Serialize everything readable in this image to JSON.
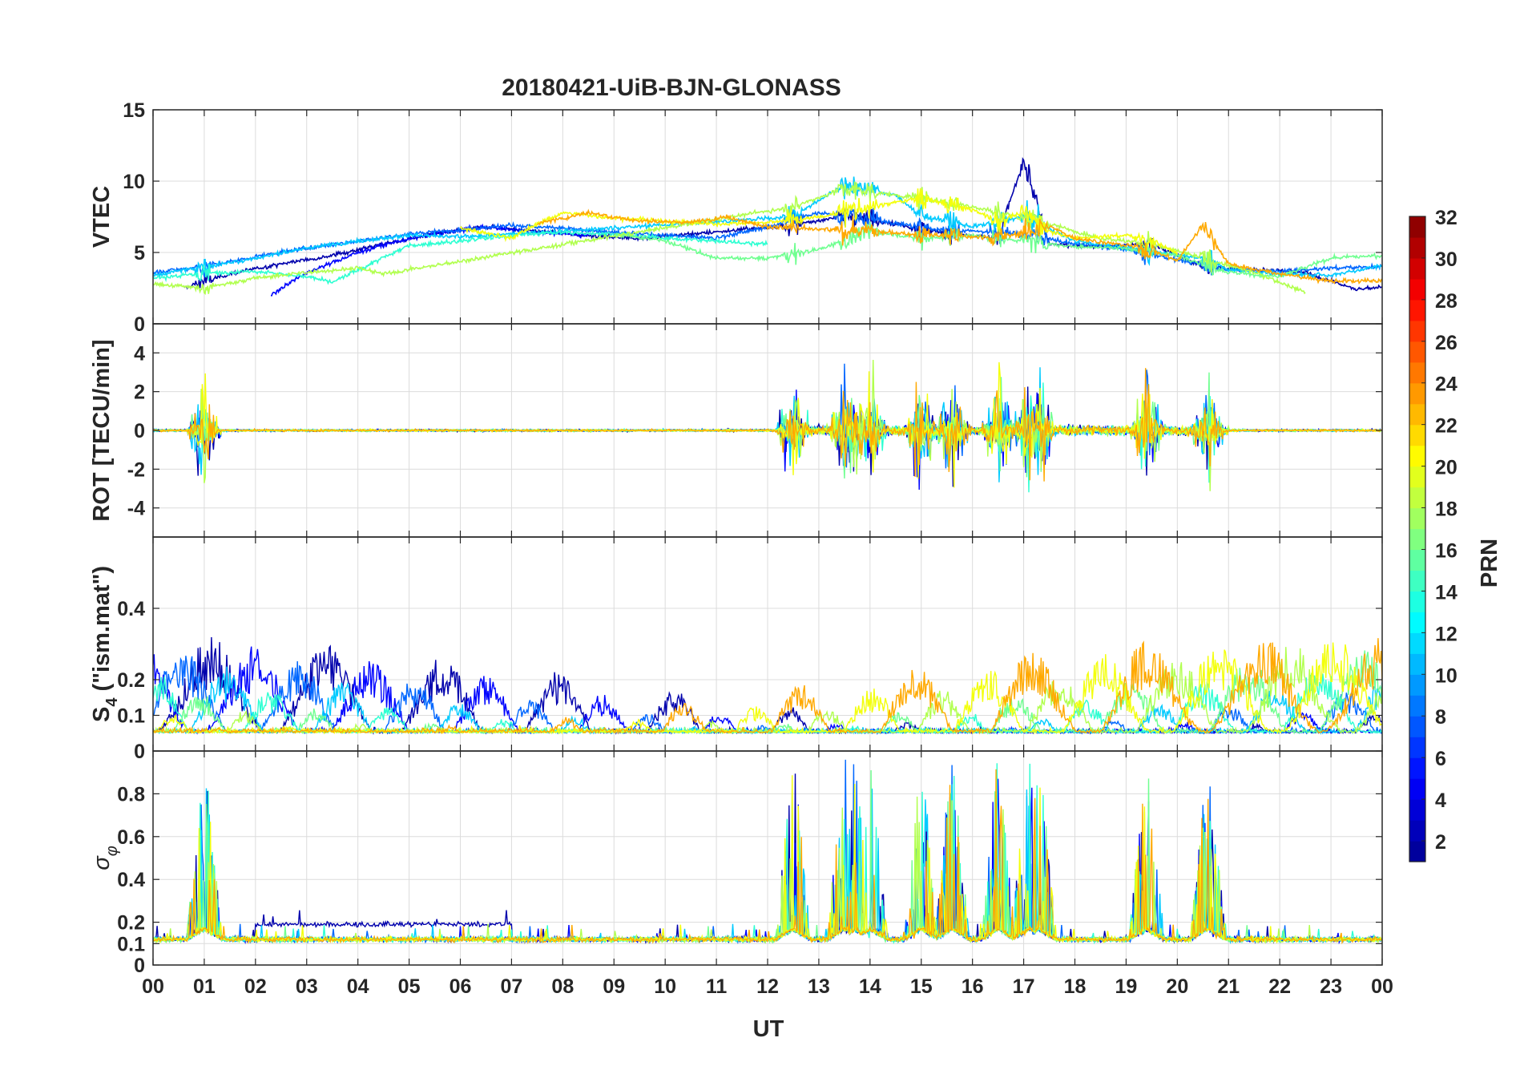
{
  "chart_data": {
    "type": "line",
    "title": "20180421-UiB-BJN-GLONASS",
    "xlabel": "UT",
    "x_ticks": [
      "00",
      "01",
      "02",
      "03",
      "04",
      "05",
      "06",
      "07",
      "08",
      "09",
      "10",
      "11",
      "12",
      "13",
      "14",
      "15",
      "16",
      "17",
      "18",
      "19",
      "20",
      "21",
      "22",
      "23",
      "00"
    ],
    "xlim": [
      0,
      24
    ],
    "grid": true,
    "colorbar": {
      "label": "PRN",
      "range": [
        1,
        32
      ],
      "ticks": [
        "2",
        "4",
        "6",
        "8",
        "10",
        "12",
        "14",
        "16",
        "18",
        "20",
        "22",
        "24",
        "26",
        "28",
        "30",
        "32"
      ],
      "colormap": "jet",
      "colors": [
        "#00008f",
        "#0000ff",
        "#0080ff",
        "#00ffff",
        "#80ff80",
        "#ffff00",
        "#ff8000",
        "#ff0000",
        "#800000"
      ]
    },
    "panels": [
      {
        "name": "vtec",
        "ylabel": "VTEC",
        "ylim": [
          0,
          15
        ],
        "y_ticks": [
          "0",
          "5",
          "10",
          "15"
        ],
        "series": [
          {
            "prn": 2,
            "x": [
              0.6,
              1.5,
              2.5,
              3.5,
              4.5,
              5.5,
              6.5,
              7.5,
              8.5,
              9.5,
              10.5,
              11.5,
              12.5,
              13.5,
              14.5,
              15.5,
              16.5,
              17.0,
              17.5,
              18.5,
              19.5,
              20.5,
              21.5,
              22.5,
              23.5,
              24.0
            ],
            "y": [
              2.5,
              3.5,
              4.2,
              4.8,
              5.6,
              6.3,
              6.8,
              6.5,
              6.2,
              6.0,
              6.3,
              6.6,
              6.9,
              7.6,
              7.0,
              6.3,
              6.0,
              11.5,
              5.6,
              5.4,
              5.6,
              4.0,
              3.8,
              3.6,
              2.4,
              2.6
            ]
          },
          {
            "prn": 5,
            "x": [
              2.3,
              2.8,
              3.3,
              4.0,
              4.8,
              5.5,
              6.5,
              7.5,
              8.5
            ],
            "y": [
              2.0,
              3.2,
              4.0,
              5.0,
              5.8,
              6.3,
              6.8,
              6.4,
              6.2
            ]
          },
          {
            "prn": 8,
            "x": [
              0.0,
              1.0,
              2.0,
              3.0,
              4.0,
              5.0,
              6.0,
              7.0,
              8.0,
              9.0,
              10.0,
              11.0,
              12.0,
              13.0,
              14.0,
              15.0,
              16.0,
              17.0,
              18.0,
              19.0,
              20.0,
              21.0,
              22.0,
              23.0,
              24.0
            ],
            "y": [
              3.6,
              4.0,
              4.7,
              5.3,
              5.8,
              6.3,
              6.6,
              6.9,
              6.7,
              6.4,
              6.2,
              6.0,
              6.8,
              7.8,
              7.4,
              6.7,
              6.5,
              6.3,
              5.6,
              5.2,
              4.5,
              3.8,
              3.7,
              3.9,
              4.0
            ]
          },
          {
            "prn": 11,
            "x": [
              0.0,
              1.0,
              2.0,
              3.0,
              4.0,
              5.0,
              6.0,
              7.0,
              8.0,
              12.5,
              13.5,
              14.5,
              15.0,
              16.0,
              17.0,
              18.0,
              20.5,
              21.0,
              22.0,
              23.0,
              24.0
            ],
            "y": [
              3.4,
              4.0,
              4.6,
              5.3,
              5.8,
              6.2,
              6.1,
              6.3,
              6.5,
              7.5,
              9.8,
              9.0,
              7.6,
              6.8,
              7.5,
              5.8,
              4.6,
              3.8,
              3.5,
              3.4,
              4.1
            ]
          },
          {
            "prn": 14,
            "x": [
              0.0,
              1.0,
              2.0,
              3.0,
              3.5,
              5.0,
              6.0,
              7.0,
              8.0,
              9.0,
              10.0,
              11.0,
              12.0
            ],
            "y": [
              3.2,
              3.5,
              3.7,
              3.3,
              2.9,
              5.5,
              5.8,
              6.2,
              6.4,
              6.3,
              6.0,
              5.8,
              5.6
            ]
          },
          {
            "prn": 16,
            "x": [
              9.0,
              10.0,
              11.0,
              12.0,
              13.0,
              14.0,
              15.0,
              16.0,
              17.0,
              18.0,
              19.0,
              20.0,
              21.0,
              22.0,
              23.0,
              24.0
            ],
            "y": [
              6.3,
              5.8,
              4.6,
              4.6,
              5.2,
              6.5,
              6.0,
              6.2,
              5.8,
              5.4,
              5.3,
              4.8,
              3.6,
              3.3,
              4.6,
              4.8
            ]
          },
          {
            "prn": 18,
            "x": [
              0.0,
              1.0,
              2.0,
              3.0,
              4.0,
              4.5,
              12.5,
              13.5,
              14.5,
              15.5,
              16.5,
              17.5,
              18.5,
              19.5,
              20.5,
              21.5,
              22.5
            ],
            "y": [
              2.8,
              2.5,
              3.2,
              3.6,
              3.9,
              3.5,
              8.2,
              9.5,
              9.0,
              8.6,
              7.8,
              7.0,
              6.0,
              5.6,
              4.6,
              3.6,
              2.2
            ]
          },
          {
            "prn": 20,
            "x": [
              6.0,
              7.0,
              7.5,
              8.0,
              9.0,
              10.0,
              11.0,
              12.0,
              13.0,
              14.0,
              15.0,
              16.0,
              16.5,
              17.0,
              17.5,
              18.0,
              19.0,
              19.5,
              20.0
            ],
            "y": [
              6.7,
              6.0,
              7.0,
              7.8,
              7.4,
              7.2,
              7.0,
              7.1,
              7.5,
              8.2,
              8.8,
              8.0,
              7.2,
              7.8,
              6.5,
              6.0,
              6.2,
              5.8,
              5.0
            ]
          },
          {
            "prn": 23,
            "x": [
              7.5,
              8.5,
              9.5,
              10.5,
              11.2,
              12.0,
              16.5,
              17.5,
              18.0,
              19.0,
              19.5,
              20.0,
              20.5,
              21.0,
              22.0,
              23.0,
              24.0
            ],
            "y": [
              7.0,
              7.8,
              7.2,
              7.1,
              7.5,
              6.8,
              6.0,
              6.8,
              6.0,
              5.5,
              5.2,
              4.4,
              7.0,
              4.2,
              3.5,
              3.0,
              3.0
            ]
          }
        ]
      },
      {
        "name": "rot",
        "ylabel": "ROT [TECU/min]",
        "ylim": [
          -5.5,
          5.5
        ],
        "y_ticks": [
          "-4",
          "-2",
          "0",
          "2",
          "4"
        ]
      },
      {
        "name": "s4",
        "ylabel": "S4 (\"ism.mat\")",
        "ylabel_main": "S",
        "ylabel_sub": "4",
        "ylabel_rest": " (\"ism.mat\")",
        "ylim": [
          0,
          0.6
        ],
        "y_ticks": [
          "0",
          "0.1",
          "0.2",
          "0.4"
        ]
      },
      {
        "name": "sigma_phi",
        "ylabel": "σφ",
        "ylabel_main": "σ",
        "ylabel_sub": "φ",
        "ylim": [
          0,
          1
        ],
        "y_ticks": [
          "0",
          "0.1",
          "0.2",
          "0.4",
          "0.6",
          "0.8"
        ]
      }
    ],
    "bursts": [
      {
        "t": 1.0,
        "prn": 2
      },
      {
        "t": 12.5,
        "prn": 10
      },
      {
        "t": 13.5,
        "prn": 2
      },
      {
        "t": 13.7,
        "prn": 10
      },
      {
        "t": 14.0,
        "prn": 15
      },
      {
        "t": 15.0,
        "prn": 19
      },
      {
        "t": 15.6,
        "prn": 21
      },
      {
        "t": 16.5,
        "prn": 2
      },
      {
        "t": 17.1,
        "prn": 2
      },
      {
        "t": 17.3,
        "prn": 21
      },
      {
        "t": 19.4,
        "prn": 22
      },
      {
        "t": 20.6,
        "prn": 23
      }
    ]
  }
}
